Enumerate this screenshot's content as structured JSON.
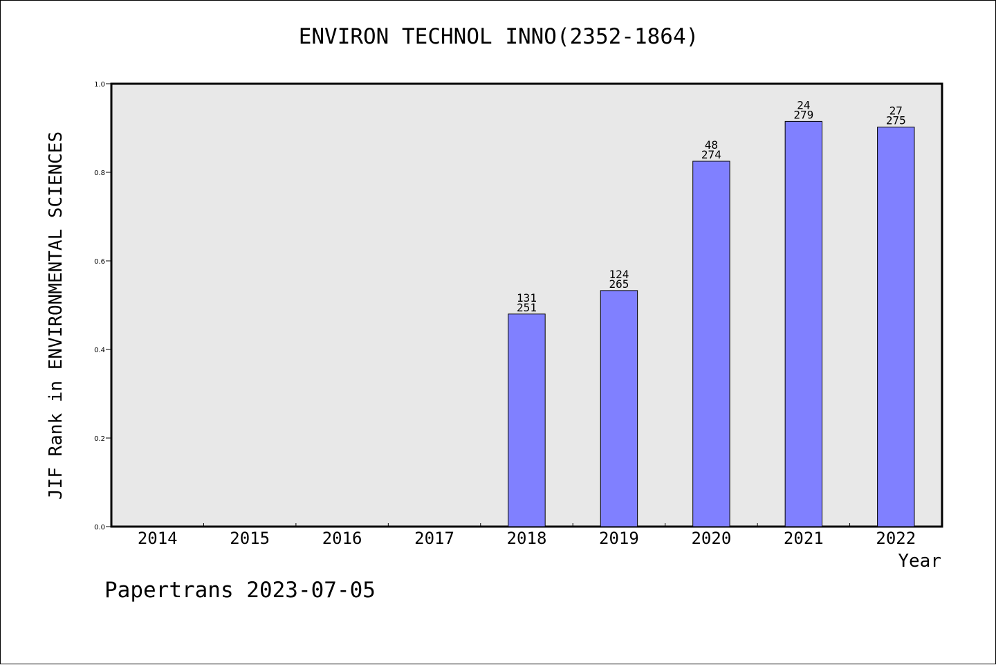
{
  "chart_data": {
    "type": "bar",
    "title": "ENVIRON TECHNOL INNO(2352-1864)",
    "xlabel": "Year",
    "ylabel": "JIF Rank in ENVIRONMENTAL SCIENCES",
    "ylim": [
      0,
      1.0
    ],
    "yticks": [
      "0.0",
      "0.2",
      "0.4",
      "0.6",
      "0.8",
      "1.0"
    ],
    "grid": false,
    "categories": [
      "2014",
      "2015",
      "2016",
      "2017",
      "2018",
      "2019",
      "2020",
      "2021",
      "2022"
    ],
    "values": [
      null,
      null,
      null,
      null,
      0.48,
      0.533,
      0.825,
      0.915,
      0.902
    ],
    "rank_labels": [
      null,
      null,
      null,
      null,
      {
        "rank": "131",
        "total": "251"
      },
      {
        "rank": "124",
        "total": "265"
      },
      {
        "rank": "48",
        "total": "274"
      },
      {
        "rank": "24",
        "total": "279"
      },
      {
        "rank": "27",
        "total": "275"
      }
    ],
    "bar_color": "#8080ff",
    "plot_background": "#e8e8e8"
  },
  "footer": {
    "stamp": "Papertrans 2023-07-05"
  }
}
